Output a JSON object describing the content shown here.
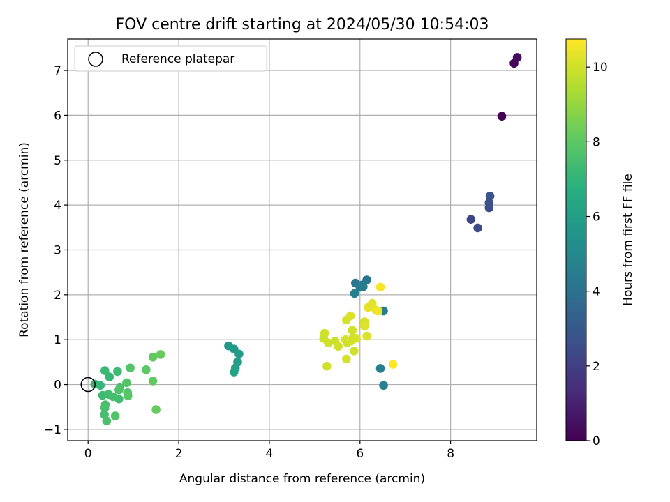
{
  "chart_data": {
    "type": "scatter",
    "title": "FOV centre drift starting at 2024/05/30 10:54:03",
    "xlabel": "Angular distance from reference (arcmin)",
    "ylabel": "Rotation from reference (arcmin)",
    "xlim": [
      -0.45,
      9.9
    ],
    "ylim": [
      -1.25,
      7.7
    ],
    "xticks": [
      0,
      2,
      4,
      6,
      8
    ],
    "yticks": [
      -1,
      0,
      1,
      2,
      3,
      4,
      5,
      6,
      7
    ],
    "grid": true,
    "legend": {
      "placement": "top-left",
      "entries": [
        {
          "label": "Reference platepar",
          "marker": "open-circle"
        }
      ]
    },
    "reference_point": {
      "x": 0,
      "y": 0
    },
    "colorbar": {
      "label": "Hours from first FF file",
      "colormap": "viridis",
      "range": [
        0,
        10.75
      ],
      "ticks": [
        0,
        2,
        4,
        6,
        8,
        10
      ]
    },
    "points": [
      {
        "x": 9.13,
        "y": 5.98,
        "c": 0.0
      },
      {
        "x": 9.4,
        "y": 7.16,
        "c": 0.2
      },
      {
        "x": 9.47,
        "y": 7.29,
        "c": 0.3
      },
      {
        "x": 8.45,
        "y": 3.68,
        "c": 2.3
      },
      {
        "x": 8.6,
        "y": 3.49,
        "c": 2.4
      },
      {
        "x": 8.85,
        "y": 3.94,
        "c": 2.5
      },
      {
        "x": 8.85,
        "y": 4.05,
        "c": 2.6
      },
      {
        "x": 8.87,
        "y": 4.2,
        "c": 2.7
      },
      {
        "x": 6.15,
        "y": 2.33,
        "c": 4.1
      },
      {
        "x": 5.9,
        "y": 2.26,
        "c": 4.2
      },
      {
        "x": 6.05,
        "y": 2.22,
        "c": 4.3
      },
      {
        "x": 6.0,
        "y": 2.17,
        "c": 4.4
      },
      {
        "x": 6.07,
        "y": 2.18,
        "c": 4.5
      },
      {
        "x": 5.88,
        "y": 2.03,
        "c": 4.6
      },
      {
        "x": 6.52,
        "y": 1.64,
        "c": 4.5
      },
      {
        "x": 6.45,
        "y": 0.36,
        "c": 4.6
      },
      {
        "x": 6.52,
        "y": -0.02,
        "c": 4.7
      },
      {
        "x": 3.1,
        "y": 0.86,
        "c": 5.7
      },
      {
        "x": 3.22,
        "y": 0.79,
        "c": 5.8
      },
      {
        "x": 3.33,
        "y": 0.68,
        "c": 5.9
      },
      {
        "x": 3.3,
        "y": 0.5,
        "c": 6.0
      },
      {
        "x": 3.25,
        "y": 0.37,
        "c": 6.1
      },
      {
        "x": 3.22,
        "y": 0.28,
        "c": 6.2
      },
      {
        "x": 0.15,
        "y": 0.01,
        "c": 7.0
      },
      {
        "x": 0.27,
        "y": -0.02,
        "c": 7.1
      },
      {
        "x": 0.37,
        "y": 0.31,
        "c": 7.2
      },
      {
        "x": 0.47,
        "y": 0.17,
        "c": 7.1
      },
      {
        "x": 0.65,
        "y": 0.29,
        "c": 7.3
      },
      {
        "x": 0.32,
        "y": -0.24,
        "c": 7.3
      },
      {
        "x": 0.45,
        "y": -0.22,
        "c": 7.4
      },
      {
        "x": 0.55,
        "y": -0.27,
        "c": 7.5
      },
      {
        "x": 0.68,
        "y": -0.32,
        "c": 7.4
      },
      {
        "x": 0.38,
        "y": -0.45,
        "c": 7.5
      },
      {
        "x": 0.37,
        "y": -0.52,
        "c": 7.6
      },
      {
        "x": 0.36,
        "y": -0.67,
        "c": 7.5
      },
      {
        "x": 0.41,
        "y": -0.81,
        "c": 7.6
      },
      {
        "x": 0.6,
        "y": -0.7,
        "c": 7.7
      },
      {
        "x": 0.7,
        "y": -0.07,
        "c": 7.6
      },
      {
        "x": 0.68,
        "y": -0.12,
        "c": 7.7
      },
      {
        "x": 0.85,
        "y": 0.04,
        "c": 7.8
      },
      {
        "x": 0.87,
        "y": -0.18,
        "c": 7.8
      },
      {
        "x": 0.88,
        "y": -0.25,
        "c": 7.9
      },
      {
        "x": 0.93,
        "y": 0.37,
        "c": 7.8
      },
      {
        "x": 1.28,
        "y": 0.33,
        "c": 8.0
      },
      {
        "x": 1.43,
        "y": 0.61,
        "c": 8.1
      },
      {
        "x": 1.6,
        "y": 0.67,
        "c": 8.2
      },
      {
        "x": 1.43,
        "y": 0.08,
        "c": 8.1
      },
      {
        "x": 1.5,
        "y": -0.56,
        "c": 8.2
      },
      {
        "x": 5.2,
        "y": 1.03,
        "c": 9.9
      },
      {
        "x": 5.22,
        "y": 1.14,
        "c": 10.0
      },
      {
        "x": 5.3,
        "y": 0.93,
        "c": 10.0
      },
      {
        "x": 5.45,
        "y": 0.97,
        "c": 9.9
      },
      {
        "x": 5.52,
        "y": 0.85,
        "c": 10.0
      },
      {
        "x": 5.68,
        "y": 1.0,
        "c": 10.1
      },
      {
        "x": 5.72,
        "y": 0.93,
        "c": 10.0
      },
      {
        "x": 5.8,
        "y": 0.97,
        "c": 10.1
      },
      {
        "x": 5.85,
        "y": 1.05,
        "c": 10.0
      },
      {
        "x": 5.92,
        "y": 1.03,
        "c": 10.1
      },
      {
        "x": 5.83,
        "y": 1.21,
        "c": 10.0
      },
      {
        "x": 5.7,
        "y": 1.44,
        "c": 10.1
      },
      {
        "x": 5.79,
        "y": 1.53,
        "c": 10.2
      },
      {
        "x": 6.1,
        "y": 1.4,
        "c": 10.1
      },
      {
        "x": 6.1,
        "y": 1.3,
        "c": 10.2
      },
      {
        "x": 6.15,
        "y": 1.08,
        "c": 10.2
      },
      {
        "x": 5.87,
        "y": 0.75,
        "c": 10.0
      },
      {
        "x": 5.7,
        "y": 0.57,
        "c": 10.1
      },
      {
        "x": 5.27,
        "y": 0.41,
        "c": 10.0
      },
      {
        "x": 6.18,
        "y": 1.72,
        "c": 10.3
      },
      {
        "x": 6.27,
        "y": 1.81,
        "c": 10.3
      },
      {
        "x": 6.35,
        "y": 1.66,
        "c": 10.4
      },
      {
        "x": 6.4,
        "y": 1.64,
        "c": 10.5
      },
      {
        "x": 6.45,
        "y": 2.17,
        "c": 10.6
      },
      {
        "x": 6.73,
        "y": 0.45,
        "c": 10.7
      }
    ]
  }
}
